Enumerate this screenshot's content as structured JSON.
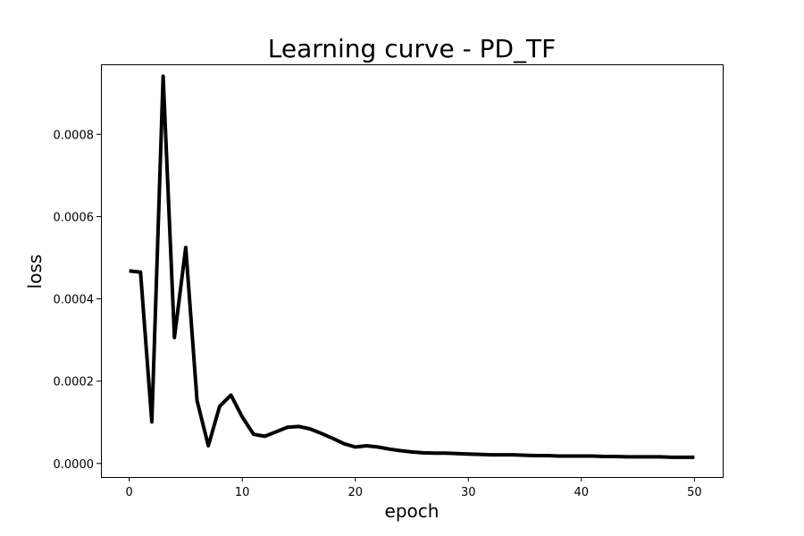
{
  "chart_data": {
    "type": "line",
    "title": "Learning curve - PD_TF",
    "xlabel": "epoch",
    "ylabel": "loss",
    "xlim": [
      -2.5,
      52.5
    ],
    "ylim": [
      -3.3e-05,
      0.00097
    ],
    "xticks": [
      0,
      10,
      20,
      30,
      40,
      50
    ],
    "xtick_labels": [
      "0",
      "10",
      "20",
      "30",
      "40",
      "50"
    ],
    "yticks": [
      0.0,
      0.0002,
      0.0004,
      0.0006,
      0.0008
    ],
    "ytick_labels": [
      "0.0000",
      "0.0002",
      "0.0004",
      "0.0006",
      "0.0008"
    ],
    "grid": false,
    "color": "#000000",
    "series": [
      {
        "x": [
          0,
          1,
          2,
          3,
          4,
          5,
          6,
          7,
          8,
          9,
          10,
          11,
          12,
          13,
          14,
          15,
          16,
          17,
          18,
          19,
          20,
          21,
          22,
          23,
          24,
          25,
          26,
          27,
          28,
          29,
          30,
          31,
          32,
          33,
          34,
          35,
          36,
          37,
          38,
          39,
          40,
          41,
          42,
          43,
          44,
          45,
          46,
          47,
          48,
          49,
          50
        ],
        "values": [
          0.000468,
          0.000465,
          0.000101,
          0.000941,
          0.000306,
          0.000525,
          0.000153,
          4.3e-05,
          0.000139,
          0.000166,
          0.000113,
          7.1e-05,
          6.6e-05,
          7.7e-05,
          8.8e-05,
          9e-05,
          8.4e-05,
          7.3e-05,
          6.1e-05,
          4.8e-05,
          4e-05,
          4.3e-05,
          4e-05,
          3.5e-05,
          3.1e-05,
          2.8e-05,
          2.6e-05,
          2.5e-05,
          2.5e-05,
          2.4e-05,
          2.3e-05,
          2.2e-05,
          2.1e-05,
          2.1e-05,
          2.1e-05,
          2e-05,
          1.9e-05,
          1.9e-05,
          1.8e-05,
          1.8e-05,
          1.8e-05,
          1.8e-05,
          1.7e-05,
          1.7e-05,
          1.6e-05,
          1.6e-05,
          1.6e-05,
          1.6e-05,
          1.5e-05,
          1.5e-05,
          1.5e-05
        ]
      }
    ]
  }
}
